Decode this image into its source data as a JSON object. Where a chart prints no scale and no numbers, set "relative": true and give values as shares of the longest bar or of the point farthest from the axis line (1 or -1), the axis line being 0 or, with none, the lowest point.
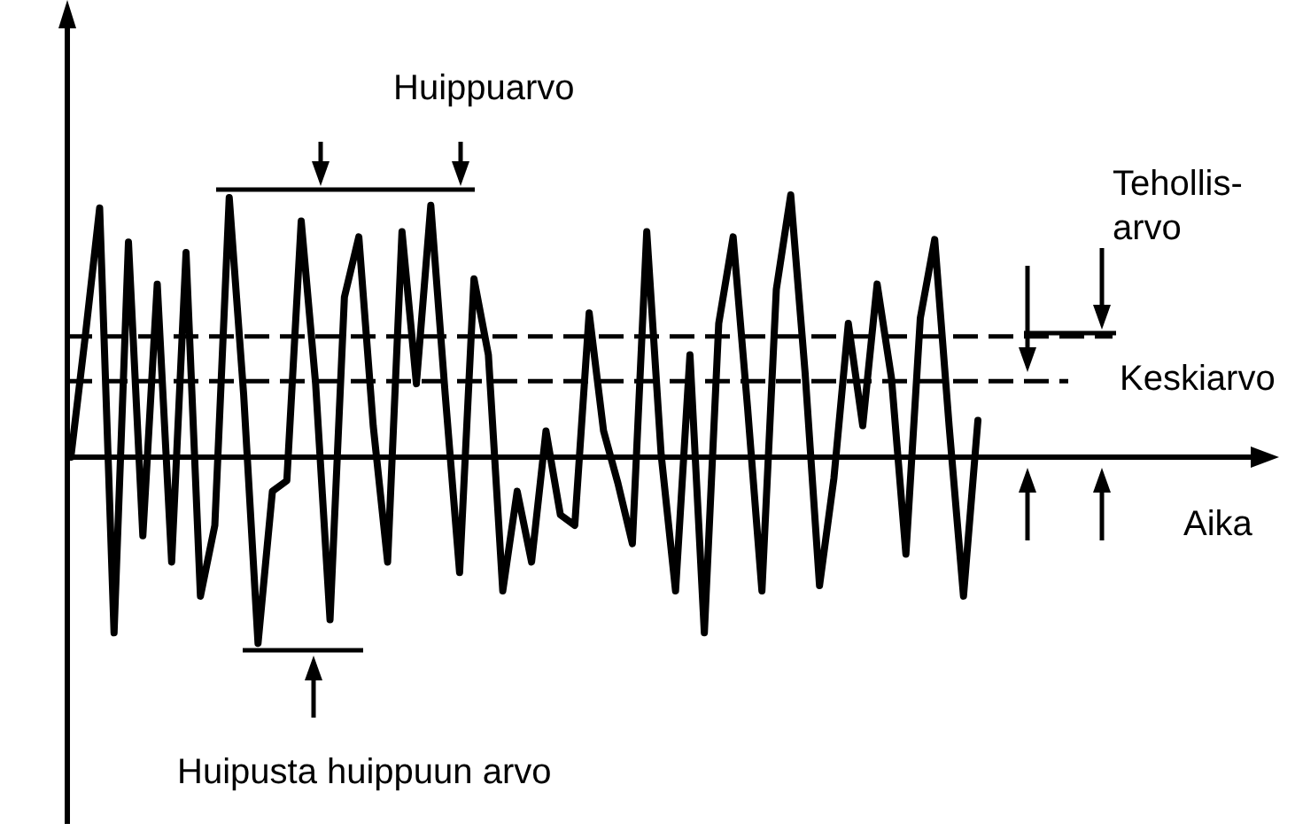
{
  "chart_data": {
    "type": "line",
    "relative": true,
    "categories": [
      null,
      null,
      null,
      null,
      null,
      null,
      null,
      null,
      null,
      null,
      null,
      null,
      null,
      null,
      null,
      null,
      null,
      null,
      null,
      null,
      null,
      null,
      null,
      null,
      null,
      null,
      null,
      null,
      null,
      null,
      null,
      null,
      null,
      null,
      null,
      null,
      null,
      null,
      null,
      null,
      null,
      null,
      null,
      null,
      null,
      null,
      null,
      null,
      null,
      null,
      null,
      null,
      null,
      null,
      null,
      null,
      null,
      null,
      null,
      null,
      null,
      null,
      null,
      null
    ],
    "series": [
      {
        "color": "#000000",
        "values": [
          0,
          0.46,
          0.95,
          -0.67,
          0.82,
          -0.3,
          0.66,
          -0.4,
          0.78,
          -0.53,
          -0.26,
          0.99,
          0.24,
          -0.71,
          -0.13,
          -0.09,
          0.9,
          0.28,
          -0.62,
          0.61,
          0.84,
          0.12,
          -0.4,
          0.86,
          0.28,
          0.96,
          0.24,
          -0.44,
          0.68,
          0.39,
          -0.51,
          -0.13,
          -0.4,
          0.1,
          -0.22,
          -0.26,
          0.55,
          0.1,
          -0.1,
          -0.33,
          0.86,
          0.01,
          -0.51,
          0.39,
          -0.67,
          0.51,
          0.84,
          0.19,
          -0.51,
          0.64,
          1,
          0.32,
          -0.49,
          -0.08,
          0.51,
          0.12,
          0.66,
          0.3,
          -0.37,
          0.53,
          0.83,
          0.12,
          -0.53,
          0.14
        ]
      }
    ],
    "ref_lines": [
      {
        "axis": "y",
        "value": 0.46,
        "label": "Tehollis-\narvo",
        "line_style": "dashed",
        "color": "#000000"
      },
      {
        "axis": "y",
        "value": 0.29,
        "label": "Keskiarvo",
        "line_style": "dashed",
        "color": "#000000"
      }
    ],
    "annotations": [
      "Huippuarvo",
      "Huipusta huippuun arvo",
      "Aika"
    ]
  }
}
